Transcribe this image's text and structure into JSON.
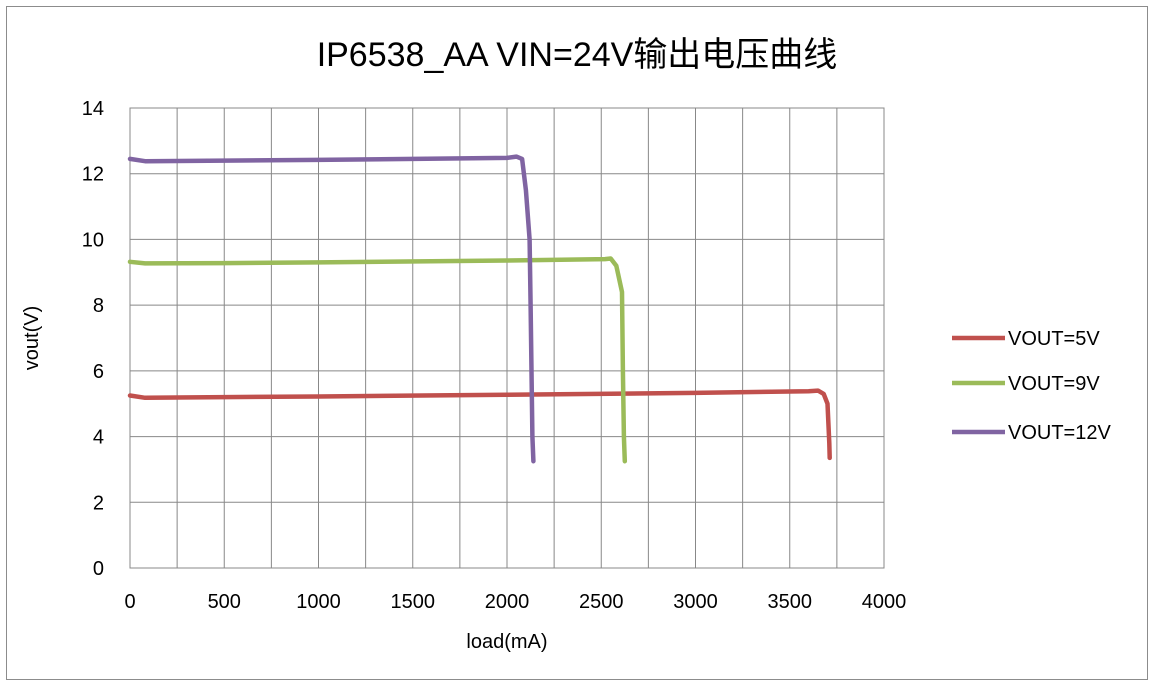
{
  "chart_data": {
    "type": "line",
    "title": "IP6538_AA  VIN=24V输出电压曲线",
    "xlabel": "load(mA)",
    "ylabel": "vout(V)",
    "xlim": [
      0,
      4000
    ],
    "ylim": [
      0,
      14
    ],
    "x_ticks": [
      0,
      500,
      1000,
      1500,
      2000,
      2500,
      3000,
      3500,
      4000
    ],
    "y_ticks": [
      0,
      2,
      4,
      6,
      8,
      10,
      12,
      14
    ],
    "grid": true,
    "legend_position": "right",
    "series": [
      {
        "name": "VOUT=5V",
        "color": "#c0504d",
        "points": [
          [
            0,
            5.25
          ],
          [
            80,
            5.18
          ],
          [
            500,
            5.2
          ],
          [
            1000,
            5.22
          ],
          [
            2000,
            5.27
          ],
          [
            3000,
            5.33
          ],
          [
            3600,
            5.38
          ],
          [
            3650,
            5.4
          ],
          [
            3680,
            5.3
          ],
          [
            3700,
            5.0
          ],
          [
            3710,
            3.8
          ],
          [
            3712,
            3.35
          ]
        ]
      },
      {
        "name": "VOUT=9V",
        "color": "#9bbb59",
        "points": [
          [
            0,
            9.32
          ],
          [
            80,
            9.27
          ],
          [
            500,
            9.28
          ],
          [
            1000,
            9.3
          ],
          [
            2000,
            9.36
          ],
          [
            2520,
            9.4
          ],
          [
            2550,
            9.42
          ],
          [
            2580,
            9.2
          ],
          [
            2610,
            8.4
          ],
          [
            2615,
            6.0
          ],
          [
            2620,
            4.0
          ],
          [
            2625,
            3.25
          ]
        ]
      },
      {
        "name": "VOUT=12V",
        "color": "#8064a2",
        "points": [
          [
            0,
            12.45
          ],
          [
            80,
            12.38
          ],
          [
            500,
            12.4
          ],
          [
            1000,
            12.42
          ],
          [
            2000,
            12.48
          ],
          [
            2050,
            12.52
          ],
          [
            2080,
            12.45
          ],
          [
            2100,
            11.5
          ],
          [
            2120,
            10.0
          ],
          [
            2125,
            8.0
          ],
          [
            2130,
            6.0
          ],
          [
            2135,
            4.0
          ],
          [
            2140,
            3.25
          ]
        ]
      }
    ]
  },
  "colors": {
    "grid": "#888888",
    "frame": "#8c8c8c"
  }
}
